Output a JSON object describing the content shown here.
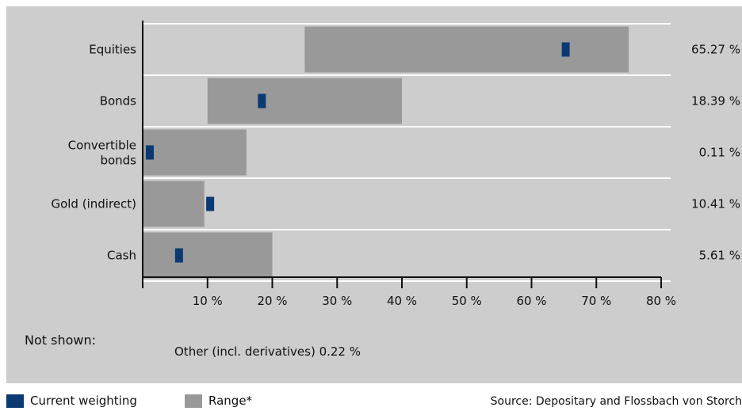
{
  "chart_data": {
    "type": "bar",
    "subtype": "range-with-marker",
    "categories": [
      "Equities",
      "Bonds",
      "Convertible bonds",
      "Gold (indirect)",
      "Cash"
    ],
    "category_lines": [
      [
        "Equities"
      ],
      [
        "Bonds"
      ],
      [
        "Convertible",
        "bonds"
      ],
      [
        "Gold (indirect)"
      ],
      [
        "Cash"
      ]
    ],
    "series": [
      {
        "name": "Range*",
        "ranges": [
          [
            25,
            75
          ],
          [
            10,
            40
          ],
          [
            0,
            16
          ],
          [
            0,
            9.5
          ],
          [
            0,
            20
          ]
        ]
      },
      {
        "name": "Current weighting",
        "values": [
          65.27,
          18.39,
          0.11,
          10.41,
          5.61
        ]
      }
    ],
    "value_labels": [
      "65.27 %",
      "18.39 %",
      "0.11 %",
      "10.41 %",
      "5.61 %"
    ],
    "x_ticks": [
      10,
      20,
      30,
      40,
      50,
      60,
      70,
      80
    ],
    "x_tick_labels": [
      "10 %",
      "20 %",
      "30 %",
      "40 %",
      "50 %",
      "60 %",
      "70 %",
      "80 %"
    ],
    "xlim": [
      0,
      80
    ],
    "grid": "horizontal row separators",
    "colors": {
      "range": "#999999",
      "current": "#0b3a73",
      "background": "#cdcdcd",
      "separator": "#ffffff"
    }
  },
  "not_shown": {
    "label": "Not shown:",
    "item": "Other (incl. derivatives) 0.22 %"
  },
  "legend": {
    "current_label": "Current weighting",
    "range_label": "Range*",
    "position": "bottom-left"
  },
  "source": "Source: Depositary and Flossbach von Storch"
}
